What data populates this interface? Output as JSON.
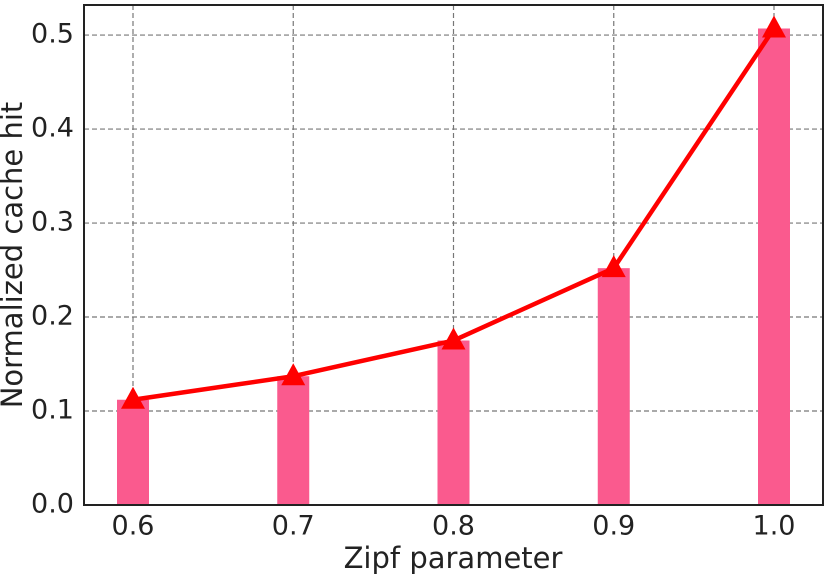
{
  "chart_data": {
    "type": "combo",
    "x_label": "Zipf parameter",
    "y_label": "Normalized cache hit",
    "categories": [
      "0.6",
      "0.7",
      "0.8",
      "0.9",
      "1.0"
    ],
    "series": [
      {
        "type": "bar",
        "color": "#fa5a8e",
        "values": [
          0.112,
          0.137,
          0.175,
          0.252,
          0.507
        ]
      },
      {
        "type": "line",
        "color": "#ff0000",
        "marker": "triangle",
        "values": [
          0.112,
          0.137,
          0.175,
          0.252,
          0.507
        ]
      }
    ],
    "ylim": [
      0,
      0.532
    ],
    "yticks": [
      {
        "value": 0,
        "label": "0.0"
      },
      0.1,
      0.2,
      0.3,
      0.4,
      0.5
    ],
    "grid": true
  }
}
